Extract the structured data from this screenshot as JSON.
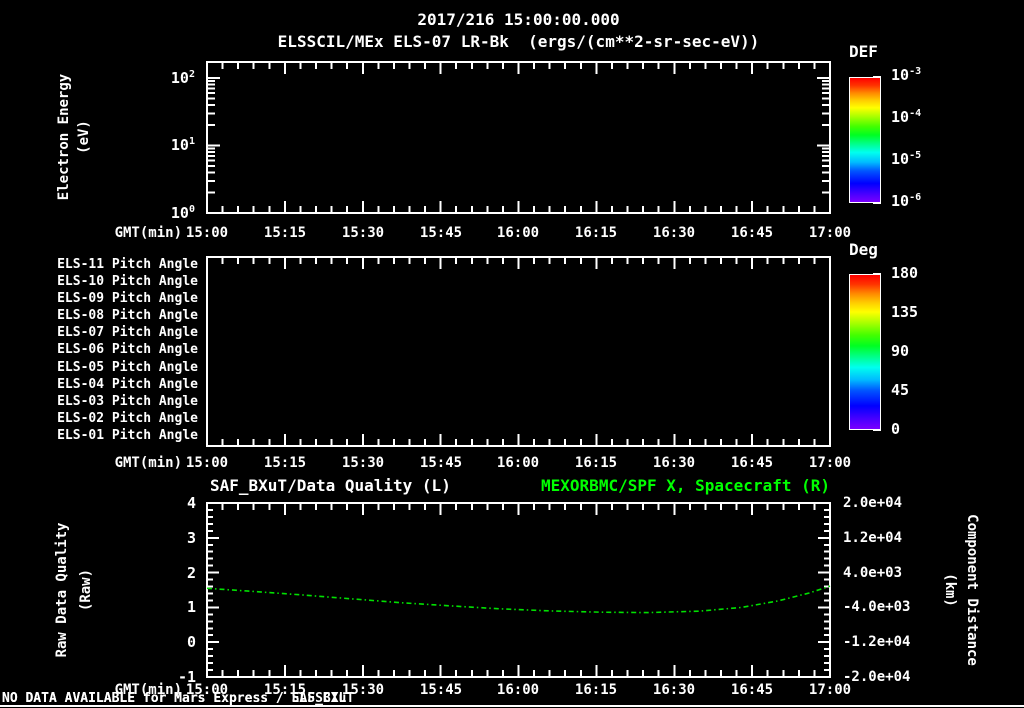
{
  "header": {
    "title": "2017/216 15:00:00.000",
    "subtitle": "ELSSCIL/MEx ELS-07 LR-Bk  (ergs/(cm**2-sr-sec-eV))"
  },
  "axes": {
    "x_label": "GMT(min)",
    "time_ticks": [
      "15:00",
      "15:15",
      "15:30",
      "15:45",
      "16:00",
      "16:15",
      "16:30",
      "16:45",
      "17:00"
    ]
  },
  "panel1": {
    "ylabel_line1": "Electron Energy",
    "ylabel_line2": "(eV)",
    "yticks": [
      {
        "base": "10",
        "exp": "2"
      },
      {
        "base": "10",
        "exp": "1"
      },
      {
        "base": "10",
        "exp": "0"
      }
    ],
    "colorbar": {
      "title": "DEF",
      "ticks": [
        {
          "base": "10",
          "exp": "-3"
        },
        {
          "base": "10",
          "exp": "-4"
        },
        {
          "base": "10",
          "exp": "-5"
        },
        {
          "base": "10",
          "exp": "-6"
        }
      ]
    }
  },
  "panel2": {
    "rows": [
      "ELS-11 Pitch Angle",
      "ELS-10 Pitch Angle",
      "ELS-09 Pitch Angle",
      "ELS-08 Pitch Angle",
      "ELS-07 Pitch Angle",
      "ELS-06 Pitch Angle",
      "ELS-05 Pitch Angle",
      "ELS-04 Pitch Angle",
      "ELS-03 Pitch Angle",
      "ELS-02 Pitch Angle",
      "ELS-01 Pitch Angle"
    ],
    "colorbar": {
      "title": "Deg",
      "ticks": [
        "180",
        "135",
        "90",
        "45",
        "0"
      ]
    }
  },
  "panel3": {
    "title_left": "SAF_BXuT/Data Quality (L)",
    "title_right": "MEXORBMC/SPF X, Spacecraft (R)",
    "ylabel_line1": "Raw Data Quality",
    "ylabel_line2": "(Raw)",
    "left_ticks": [
      "4",
      "3",
      "2",
      "1",
      "0",
      "-1"
    ],
    "right_ticks": [
      "2.0e+04",
      "1.2e+04",
      "4.0e+03",
      "-4.0e+03",
      "-1.2e+04",
      "-2.0e+04"
    ],
    "right_label_line1": "Component Distance",
    "right_label_line2": "(km)"
  },
  "footer": {
    "no_data_messages": [
      "NO DATA AVAILABLE for Mars Express / ELSSCIL",
      "NO DATA AVAILABLE for Mars Express / SAF_BXuT"
    ]
  },
  "colors": {
    "accent_green": "#00ff00",
    "line_green": "#00e000",
    "frame_white": "#ffffff"
  },
  "chart_data": [
    {
      "type": "heatmap",
      "title": "ELSSCIL/MEx ELS-07 LR-Bk (ergs/(cm**2-sr-sec-eV))",
      "xlabel": "GMT(min)",
      "ylabel": "Electron Energy (eV)",
      "x_ticks": [
        "15:00",
        "15:15",
        "15:30",
        "15:45",
        "16:00",
        "16:15",
        "16:30",
        "16:45",
        "17:00"
      ],
      "y_scale": "log",
      "ylim": [
        1,
        100
      ],
      "colorbar": {
        "title": "DEF",
        "scale": "log",
        "ticks": [
          0.001,
          0.0001,
          1e-05,
          1e-06
        ]
      },
      "values": [],
      "note": "empty panel - no spectrogram data plotted"
    },
    {
      "type": "heatmap",
      "rows": [
        "ELS-11 Pitch Angle",
        "ELS-10 Pitch Angle",
        "ELS-09 Pitch Angle",
        "ELS-08 Pitch Angle",
        "ELS-07 Pitch Angle",
        "ELS-06 Pitch Angle",
        "ELS-05 Pitch Angle",
        "ELS-04 Pitch Angle",
        "ELS-03 Pitch Angle",
        "ELS-02 Pitch Angle",
        "ELS-01 Pitch Angle"
      ],
      "xlabel": "GMT(min)",
      "x_ticks": [
        "15:00",
        "15:15",
        "15:30",
        "15:45",
        "16:00",
        "16:15",
        "16:30",
        "16:45",
        "17:00"
      ],
      "colorbar": {
        "title": "Deg",
        "ticks": [
          180,
          135,
          90,
          45,
          0
        ]
      },
      "values": [],
      "note": "empty panel - no pitch angle data plotted"
    },
    {
      "type": "line",
      "title_left": "SAF_BXuT/Data Quality (L)",
      "title_right": "MEXORBMC/SPF X, Spacecraft (R)",
      "xlabel": "GMT(min)",
      "x_ticks": [
        "15:00",
        "15:15",
        "15:30",
        "15:45",
        "16:00",
        "16:15",
        "16:30",
        "16:45",
        "17:00"
      ],
      "left_axis": {
        "label": "Raw Data Quality (Raw)",
        "lim": [
          -1,
          4
        ],
        "ticks": [
          4,
          3,
          2,
          1,
          0,
          -1
        ]
      },
      "right_axis": {
        "label": "Component Distance (km)",
        "lim": [
          -20000,
          20000
        ],
        "ticks": [
          20000,
          12000,
          4000,
          -4000,
          -12000,
          -20000
        ]
      },
      "series": [
        {
          "name": "SAF_BXuT/Data Quality (L)",
          "axis": "left",
          "points_t_min_km": [],
          "note": "no data available"
        },
        {
          "name": "MEXORBMC/SPF X, Spacecraft (R)",
          "axis": "right",
          "color": "#00e000",
          "line_style": "dashed",
          "points_t_min_km": [
            [
              0,
              400
            ],
            [
              8,
              -250
            ],
            [
              18,
              -1100
            ],
            [
              28,
              -2050
            ],
            [
              37,
              -2900
            ],
            [
              47,
              -3650
            ],
            [
              56,
              -4300
            ],
            [
              66,
              -4800
            ],
            [
              76,
              -5100
            ],
            [
              85,
              -5200
            ],
            [
              95,
              -4850
            ],
            [
              103,
              -4000
            ],
            [
              110,
              -2500
            ],
            [
              116,
              -700
            ],
            [
              120,
              900
            ]
          ]
        }
      ]
    }
  ]
}
